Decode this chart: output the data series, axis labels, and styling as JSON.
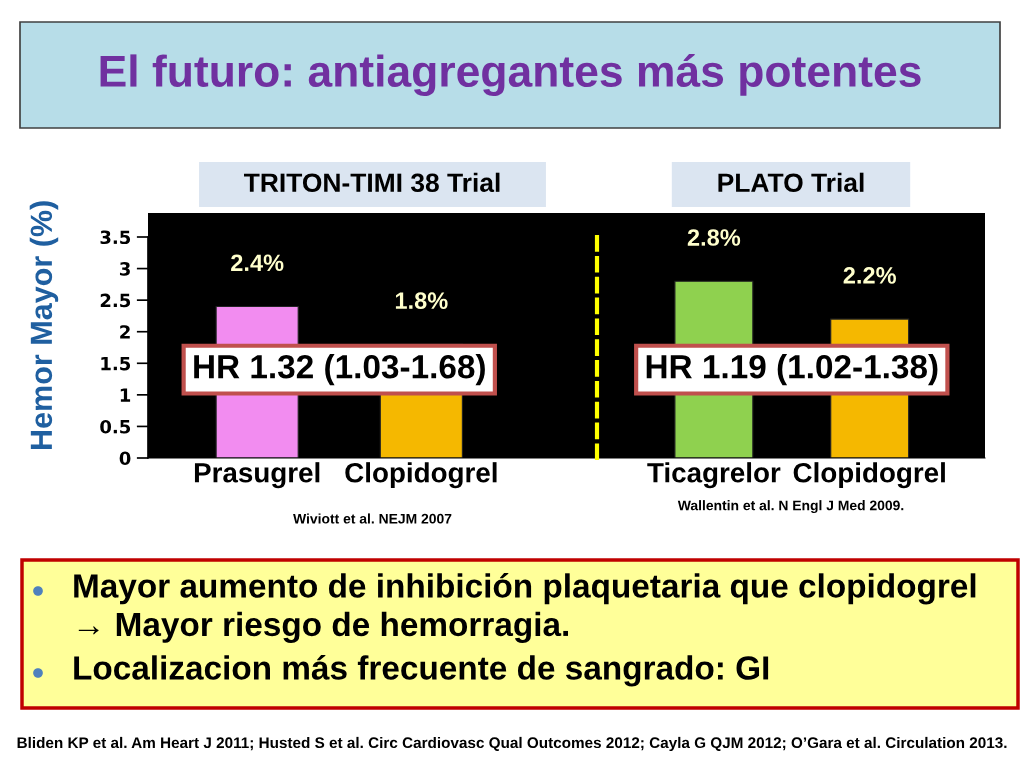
{
  "chart_data": [
    {
      "type": "bar",
      "title": "El futuro: antiagregantes más potentes",
      "subtitle": "TRITON-TIMI 38 Trial",
      "ylabel": "Hemor Mayor (%)",
      "categories": [
        "Prasugrel",
        "Clopidogrel"
      ],
      "values": [
        2.4,
        1.8
      ],
      "colors": [
        "#f28cf0",
        "#f5b800"
      ],
      "value_labels": [
        "2.4%",
        "1.8%"
      ],
      "ylim": [
        0,
        3.5
      ],
      "yticks": [
        0,
        0.5,
        1,
        1.5,
        2,
        2.5,
        3,
        3.5
      ],
      "annotations": [
        "HR 1.32 (1.03-1.68)",
        "Wiviott et al. NEJM 2007"
      ]
    },
    {
      "type": "bar",
      "subtitle": "PLATO Trial",
      "categories": [
        "Ticagrelor",
        "Clopidogrel"
      ],
      "values": [
        2.8,
        2.2
      ],
      "colors": [
        "#8fd14f",
        "#f5b800"
      ],
      "value_labels": [
        "2.8%",
        "2.2%"
      ],
      "ylim": [
        0,
        3.5
      ],
      "yticks": [
        0,
        0.5,
        1,
        1.5,
        2,
        2.5,
        3,
        3.5
      ],
      "tick_labels": "x",
      "annotations": [
        "HR 1.19 (1.02-1.38)",
        "Wallentin et al. N Engl J Med 2009.",
        "Mayor aumento de inhibición plaquetaria que clopidogrel\n→ Mayor riesgo de hemorragia.",
        "Localizacion más frecuente de sangrado: GI",
        "Bliden KP et al. Am Heart J 2011; Husted S et al. Circ Cardiovasc Qual Outcomes 2012; Cayla G QJM 2012; O’Gara et al. Circulation 2013."
      ]
    }
  ]
}
